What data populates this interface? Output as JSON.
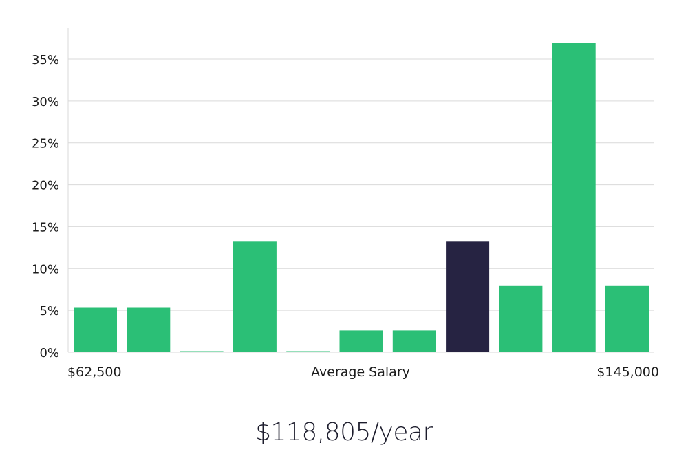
{
  "chart_data": {
    "type": "bar",
    "title": "",
    "xlabel": "Average Salary",
    "ylabel": "",
    "x_range_labels": {
      "min": "$62,500",
      "max": "$145,000"
    },
    "ylim": [
      0,
      38
    ],
    "yticks": [
      0,
      5,
      10,
      15,
      20,
      25,
      30,
      35
    ],
    "ytick_suffix": "%",
    "grid": true,
    "values": [
      5.3,
      5.3,
      0,
      13.2,
      0,
      2.6,
      2.6,
      13.2,
      7.9,
      36.9,
      7.9
    ],
    "highlight_index": 7,
    "colors": {
      "bar": "#2bbf76",
      "highlight": "#262342",
      "grid": "#d9d9d9",
      "text": "#1c1c1c"
    }
  },
  "summary": {
    "salary": "$118,805/year"
  }
}
